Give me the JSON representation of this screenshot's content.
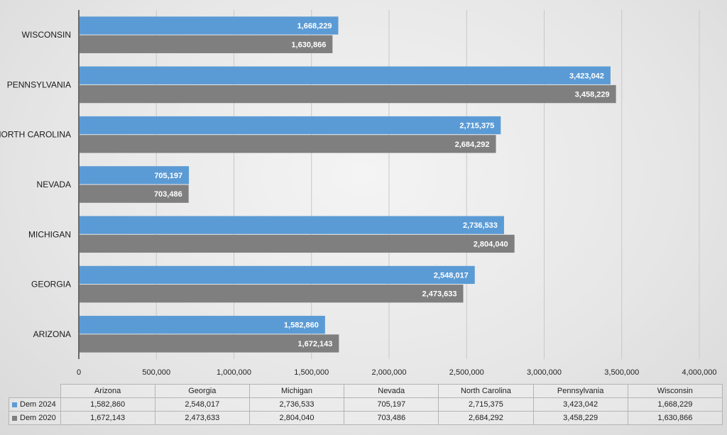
{
  "chart_data": {
    "type": "bar",
    "orientation": "horizontal",
    "categories": [
      "WISCONSIN",
      "PENNSYLVANIA",
      "NORTH CAROLINA",
      "NEVADA",
      "MICHIGAN",
      "GEORGIA",
      "ARIZONA"
    ],
    "series": [
      {
        "name": "Dem 2024",
        "color": "#5b9bd5",
        "values": [
          1668229,
          3423042,
          2715375,
          705197,
          2736533,
          2548017,
          1582860
        ],
        "value_labels": [
          "1,668,229",
          "3,423,042",
          "2,715,375",
          "705,197",
          "2,736,533",
          "2,548,017",
          "1,582,860"
        ]
      },
      {
        "name": "Dem 2020",
        "color": "#7f7f7f",
        "values": [
          1630866,
          3458229,
          2684292,
          703486,
          2804040,
          2473633,
          1672143
        ],
        "value_labels": [
          "1,630,866",
          "3,458,229",
          "2,684,292",
          "703,486",
          "2,804,040",
          "2,473,633",
          "1,672,143"
        ]
      }
    ],
    "xlim": [
      0,
      4000000
    ],
    "x_ticks": [
      0,
      500000,
      1000000,
      1500000,
      2000000,
      2500000,
      3000000,
      3500000,
      4000000
    ],
    "x_tick_labels": [
      "0",
      "500,000",
      "1,000,000",
      "1,500,000",
      "2,000,000",
      "2,500,000",
      "3,000,000",
      "3,500,000",
      "4,000,000"
    ],
    "grid": true,
    "data_table": {
      "columns": [
        "Arizona",
        "Georgia",
        "Michigan",
        "Nevada",
        "North Carolina",
        "Pennsylvania",
        "Wisconsin"
      ],
      "rows": [
        {
          "series": "Dem 2024",
          "cells": [
            "1,582,860",
            "2,548,017",
            "2,736,533",
            "705,197",
            "2,715,375",
            "3,423,042",
            "1,668,229"
          ]
        },
        {
          "series": "Dem 2020",
          "cells": [
            "1,672,143",
            "2,473,633",
            "2,804,040",
            "703,486",
            "2,684,292",
            "3,458,229",
            "1,630,866"
          ]
        }
      ]
    }
  }
}
